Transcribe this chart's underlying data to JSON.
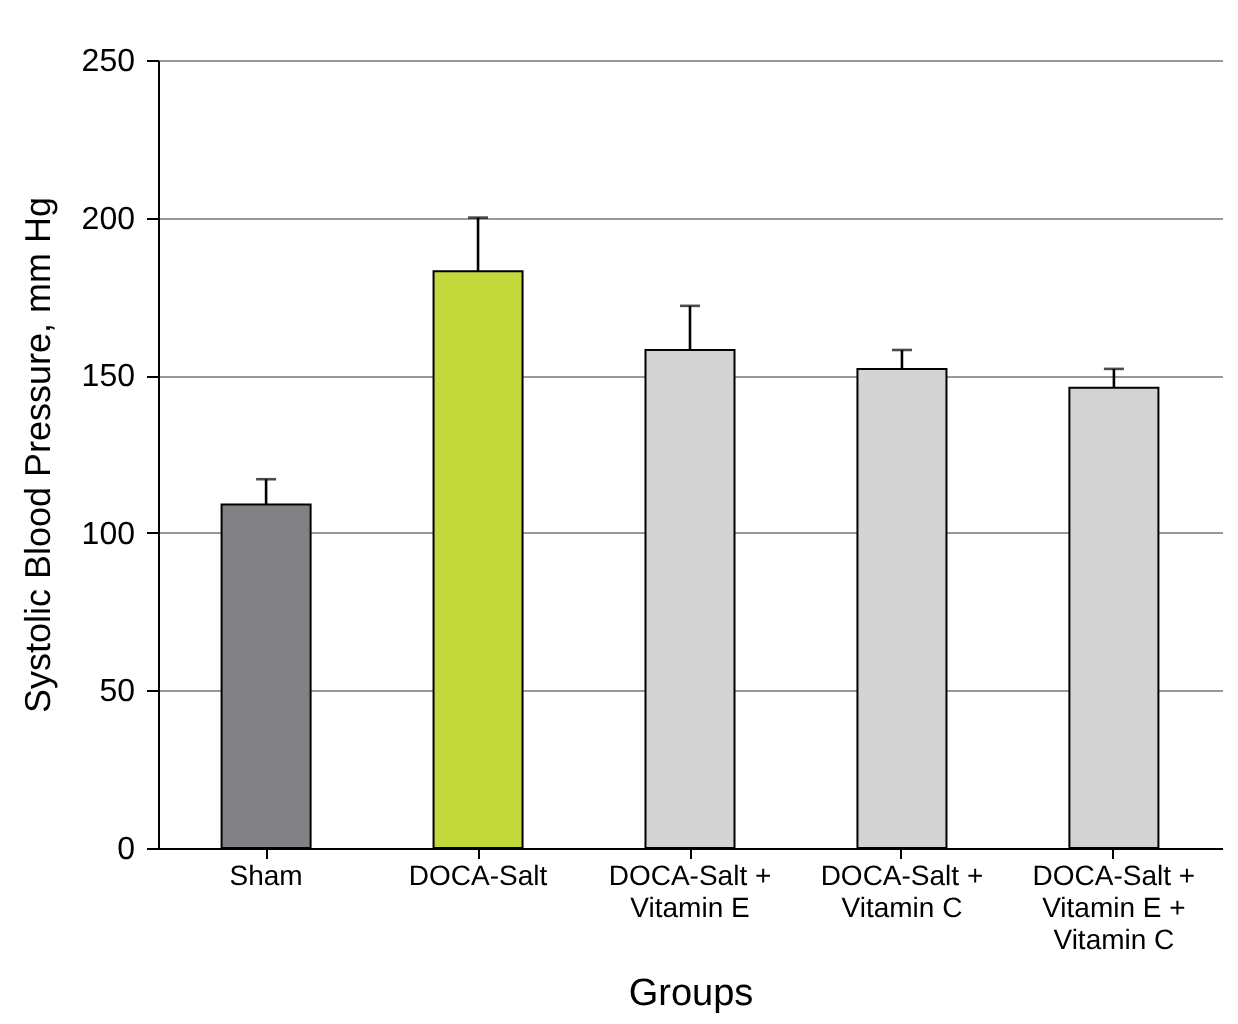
{
  "chart_data": {
    "type": "bar",
    "xlabel": "Groups",
    "ylabel": "Systolic Blood Pressure, mm Hg",
    "categories": [
      "Sham",
      "DOCA-Salt",
      "DOCA-Salt +\nVitamin E",
      "DOCA-Salt +\nVitamin C",
      "DOCA-Salt +\nVitamin E +\nVitamin C"
    ],
    "values": [
      109,
      183,
      158,
      152,
      146
    ],
    "colors": [
      "#808085",
      "#c3d83b",
      "#d3d3d3",
      "#d3d3d3",
      "#d3d3d3"
    ],
    "errors": [
      [
        109,
        117
      ],
      [
        183,
        200
      ],
      [
        158,
        172
      ],
      [
        152,
        158
      ],
      [
        146,
        152
      ]
    ],
    "ylim": [
      0,
      250
    ],
    "yticks": [
      0,
      50,
      100,
      150,
      200,
      250
    ],
    "grid": "y",
    "legend": false
  }
}
